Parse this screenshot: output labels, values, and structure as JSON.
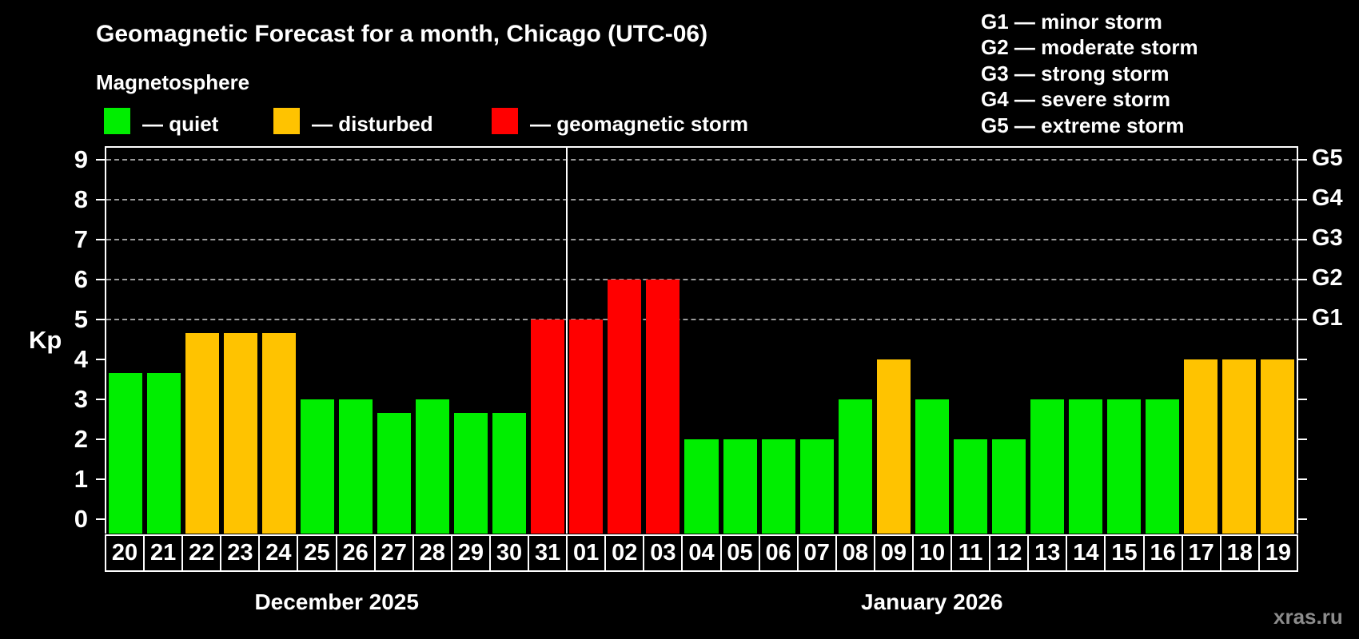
{
  "title": "Geomagnetic Forecast for a month, Chicago (UTC-06)",
  "subtitle": "Magnetosphere",
  "legend": {
    "items": [
      {
        "key": "quiet",
        "label": "— quiet",
        "color": "#00ee00"
      },
      {
        "key": "disturbed",
        "label": "— disturbed",
        "color": "#ffc300"
      },
      {
        "key": "storm",
        "label": "— geomagnetic storm",
        "color": "#ff0000"
      }
    ]
  },
  "storm_scale": [
    "G1 — minor storm",
    "G2 — moderate storm",
    "G3 — strong storm",
    "G4 — severe storm",
    "G5 — extreme storm"
  ],
  "axis": {
    "y_label": "Kp",
    "y_ticks": [
      9,
      8,
      7,
      6,
      5,
      4,
      3,
      2,
      1,
      0
    ],
    "right_labels": [
      {
        "label": "G1",
        "kp": 5
      },
      {
        "label": "G2",
        "kp": 6
      },
      {
        "label": "G3",
        "kp": 7
      },
      {
        "label": "G4",
        "kp": 8
      },
      {
        "label": "G5",
        "kp": 9
      }
    ]
  },
  "watermark": "xras.ru",
  "chart_data": {
    "type": "bar",
    "title": "Geomagnetic Forecast for a month, Chicago (UTC-06)",
    "xlabel": "",
    "ylabel": "Kp",
    "ylim": [
      0,
      9
    ],
    "grid": "horizontal dashed lines at Kp 5,6,7,8,9 (G1..G5)",
    "legend_position": "top-left",
    "months": [
      {
        "label": "December 2025",
        "days": 12
      },
      {
        "label": "January 2026",
        "days": 19
      }
    ],
    "bars": [
      {
        "day": "20",
        "kp": 3.67,
        "status": "quiet"
      },
      {
        "day": "21",
        "kp": 3.67,
        "status": "quiet"
      },
      {
        "day": "22",
        "kp": 4.67,
        "status": "disturbed"
      },
      {
        "day": "23",
        "kp": 4.67,
        "status": "disturbed"
      },
      {
        "day": "24",
        "kp": 4.67,
        "status": "disturbed"
      },
      {
        "day": "25",
        "kp": 3,
        "status": "quiet"
      },
      {
        "day": "26",
        "kp": 3,
        "status": "quiet"
      },
      {
        "day": "27",
        "kp": 2.67,
        "status": "quiet"
      },
      {
        "day": "28",
        "kp": 3,
        "status": "quiet"
      },
      {
        "day": "29",
        "kp": 2.67,
        "status": "quiet"
      },
      {
        "day": "30",
        "kp": 2.67,
        "status": "quiet"
      },
      {
        "day": "31",
        "kp": 5,
        "status": "storm"
      },
      {
        "day": "01",
        "kp": 5,
        "status": "storm"
      },
      {
        "day": "02",
        "kp": 6,
        "status": "storm"
      },
      {
        "day": "03",
        "kp": 6,
        "status": "storm"
      },
      {
        "day": "04",
        "kp": 2,
        "status": "quiet"
      },
      {
        "day": "05",
        "kp": 2,
        "status": "quiet"
      },
      {
        "day": "06",
        "kp": 2,
        "status": "quiet"
      },
      {
        "day": "07",
        "kp": 2,
        "status": "quiet"
      },
      {
        "day": "08",
        "kp": 3,
        "status": "quiet"
      },
      {
        "day": "09",
        "kp": 4,
        "status": "disturbed"
      },
      {
        "day": "10",
        "kp": 3,
        "status": "quiet"
      },
      {
        "day": "11",
        "kp": 2,
        "status": "quiet"
      },
      {
        "day": "12",
        "kp": 2,
        "status": "quiet"
      },
      {
        "day": "13",
        "kp": 3,
        "status": "quiet"
      },
      {
        "day": "14",
        "kp": 3,
        "status": "quiet"
      },
      {
        "day": "15",
        "kp": 3,
        "status": "quiet"
      },
      {
        "day": "16",
        "kp": 3,
        "status": "quiet"
      },
      {
        "day": "17",
        "kp": 4,
        "status": "disturbed"
      },
      {
        "day": "18",
        "kp": 4,
        "status": "disturbed"
      },
      {
        "day": "19",
        "kp": 4,
        "status": "disturbed"
      }
    ]
  }
}
